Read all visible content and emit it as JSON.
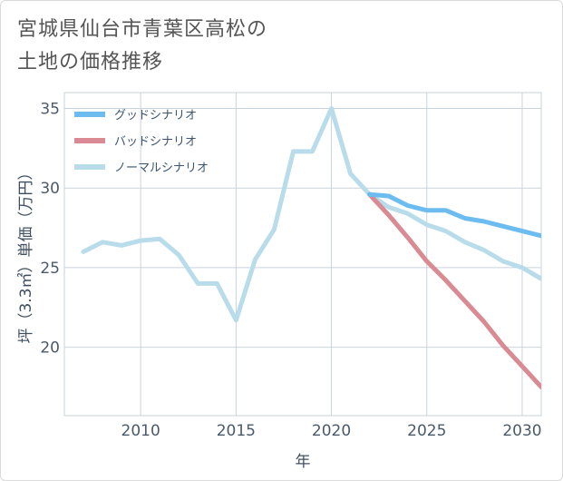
{
  "title_lines": [
    "宮城県仙台市青葉区高松の",
    "土地の価格推移"
  ],
  "chart_data": {
    "type": "line",
    "xlabel": "年",
    "ylabel": "坪（3.3㎡）単価（万円）",
    "xlim": [
      2006,
      2031
    ],
    "ylim": [
      15.7,
      36.0
    ],
    "x_ticks": [
      2010,
      2015,
      2020,
      2025,
      2030
    ],
    "y_ticks": [
      20,
      25,
      30,
      35
    ],
    "grid": true,
    "legend_position": "top-left",
    "series": [
      {
        "name": "グッドシナリオ",
        "color": "#6cbcf0",
        "x": [
          2022,
          2023,
          2024,
          2025,
          2026,
          2027,
          2028,
          2029,
          2030,
          2031
        ],
        "y": [
          29.6,
          29.5,
          28.9,
          28.6,
          28.6,
          28.1,
          27.9,
          27.6,
          27.3,
          27.0
        ]
      },
      {
        "name": "バッドシナリオ",
        "color": "#d98a92",
        "x": [
          2022,
          2023,
          2024,
          2025,
          2026,
          2027,
          2028,
          2029,
          2030,
          2031
        ],
        "y": [
          29.6,
          28.3,
          26.9,
          25.4,
          24.2,
          22.9,
          21.6,
          20.1,
          18.8,
          17.5
        ]
      },
      {
        "name": "ノーマルシナリオ",
        "color": "#b8dcea",
        "x": [
          2007,
          2008,
          2009,
          2010,
          2011,
          2012,
          2013,
          2014,
          2015,
          2016,
          2017,
          2018,
          2019,
          2020,
          2021,
          2022,
          2023,
          2024,
          2025,
          2026,
          2027,
          2028,
          2029,
          2030,
          2031
        ],
        "y": [
          26.0,
          26.6,
          26.4,
          26.7,
          26.8,
          25.8,
          24.0,
          24.0,
          21.7,
          25.5,
          27.4,
          32.3,
          32.3,
          35.0,
          30.9,
          29.6,
          28.8,
          28.4,
          27.7,
          27.3,
          26.6,
          26.1,
          25.4,
          25.0,
          24.3
        ]
      }
    ]
  }
}
